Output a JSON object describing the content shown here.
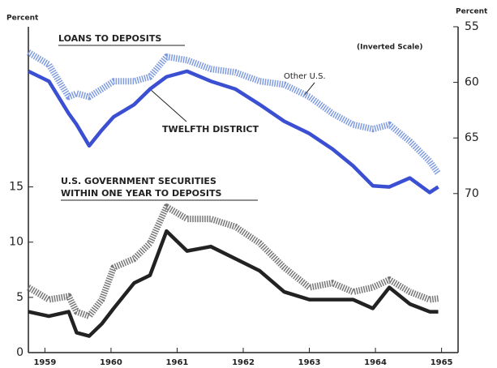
{
  "chart_data": {
    "type": "line",
    "y_axis_label": "Percent",
    "y2_axis_label": "Percent",
    "annotations": [
      "LOANS TO DEPOSITS",
      "(Inverted Scale)",
      "U.S. GOVERNMENT SECURITIES",
      "WITHIN ONE YEAR TO DEPOSITS"
    ],
    "x": [
      1958.75,
      1959.06,
      1959.36,
      1959.48,
      1959.67,
      1959.86,
      1960.04,
      1960.35,
      1960.59,
      1960.84,
      1961.15,
      1961.51,
      1961.88,
      1962.25,
      1962.62,
      1963.0,
      1963.35,
      1963.66,
      1963.96,
      1964.21,
      1964.52,
      1964.82,
      1964.95
    ],
    "xlim": [
      1958.75,
      1965.25
    ],
    "xticks": [
      1959,
      1960,
      1961,
      1962,
      1963,
      1964,
      1965
    ],
    "ylim": [
      0,
      29.5
    ],
    "yticks": [
      0,
      5,
      10,
      15
    ],
    "y2lim": [
      84.3,
      55
    ],
    "y2ticks": [
      55,
      60,
      65,
      70
    ],
    "y2_inverted": true,
    "series": [
      {
        "name": "Other U.S.",
        "color": "#7f9be0",
        "style": "hatched",
        "axis": "y2",
        "values": [
          57.3,
          58.4,
          61.3,
          61.0,
          61.3,
          60.6,
          59.9,
          59.9,
          59.5,
          57.7,
          58.0,
          58.8,
          59.1,
          59.9,
          60.2,
          61.3,
          62.8,
          63.8,
          64.2,
          63.8,
          65.3,
          67.1,
          68.2
        ]
      },
      {
        "name": "TWELFTH DISTRICT",
        "color": "#3b4fd2",
        "style": "solid",
        "axis": "y2",
        "values": [
          59.0,
          59.9,
          62.8,
          63.8,
          65.7,
          64.3,
          63.1,
          62.0,
          60.6,
          59.5,
          59.0,
          59.9,
          60.6,
          62.0,
          63.5,
          64.6,
          66.0,
          67.5,
          69.3,
          69.4,
          68.6,
          69.9,
          69.4
        ]
      },
      {
        "color": "#777777",
        "style": "hatched",
        "values": [
          5.9,
          4.8,
          5.1,
          3.7,
          3.3,
          4.8,
          7.7,
          8.5,
          9.9,
          13.2,
          12.1,
          12.1,
          11.4,
          9.9,
          7.7,
          5.9,
          6.3,
          5.5,
          5.9,
          6.6,
          5.5,
          4.8,
          4.9
        ]
      },
      {
        "color": "#222222",
        "style": "solid",
        "values": [
          3.7,
          3.3,
          3.7,
          1.8,
          1.5,
          2.6,
          4.0,
          6.3,
          7.0,
          11.0,
          9.2,
          9.6,
          8.5,
          7.4,
          5.5,
          4.8,
          4.8,
          4.8,
          4.0,
          5.9,
          4.4,
          3.7,
          3.7
        ]
      }
    ]
  }
}
